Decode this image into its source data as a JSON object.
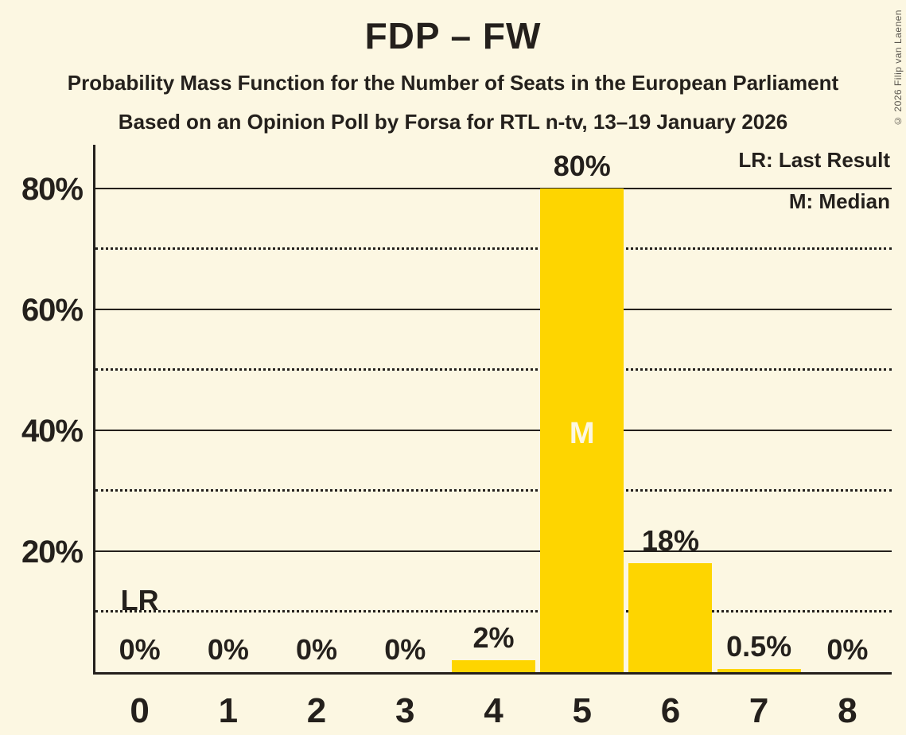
{
  "page": {
    "title": "FDP – FW",
    "subtitle_line1": "Probability Mass Function for the Number of Seats in the European Parliament",
    "subtitle_line2": "Based on an Opinion Poll by Forsa for RTL n-tv, 13–19 January 2026",
    "copyright": "© 2026 Filip van Laenen"
  },
  "legend": {
    "last_result": "LR: Last Result",
    "median": "M: Median"
  },
  "colors": {
    "background": "#FCF7E2",
    "bar_yellow": "#FED500",
    "text_dark": "#24201C",
    "bar_inner_label": "#FCF7E2",
    "copyright_gray": "#5B574F"
  },
  "chart_data": {
    "type": "bar",
    "title": "FDP – FW",
    "categories": [
      "0",
      "1",
      "2",
      "3",
      "4",
      "5",
      "6",
      "7",
      "8"
    ],
    "values": [
      0,
      0,
      0,
      0,
      2,
      80,
      18,
      0.5,
      0
    ],
    "value_labels": [
      "0%",
      "0%",
      "0%",
      "0%",
      "2%",
      "80%",
      "18%",
      "0.5%",
      "0%"
    ],
    "y_tick_labels": [
      "20%",
      "40%",
      "60%",
      "80%"
    ],
    "y_solid_gridlines": [
      20,
      40,
      60,
      80
    ],
    "y_dotted_gridlines": [
      10,
      30,
      50,
      70
    ],
    "ylim": [
      0,
      87
    ],
    "grid": "horizontal",
    "legend_position": "top-right",
    "annotations": {
      "median_column": 5,
      "median_label": "M",
      "last_result_column": 0,
      "last_result_label": "LR"
    }
  }
}
